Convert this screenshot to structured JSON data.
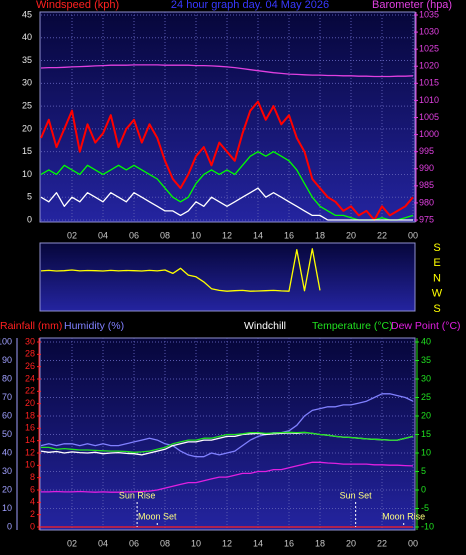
{
  "chart_data": [
    {
      "type": "line",
      "title": "24 hour graph day. 04 May 2026",
      "ylabel": "Windspeed (kph)",
      "y2label": "Barometer (hpa)",
      "x": [
        0,
        0.5,
        1,
        1.5,
        2,
        2.5,
        3,
        3.5,
        4,
        4.5,
        5,
        5.5,
        6,
        6.5,
        7,
        7.5,
        8,
        8.5,
        9,
        9.5,
        10,
        10.5,
        11,
        11.5,
        12,
        12.5,
        13,
        13.5,
        14,
        14.5,
        15,
        15.5,
        16,
        16.5,
        17,
        17.5,
        18,
        18.5,
        19,
        19.5,
        20,
        20.5,
        21,
        21.5,
        22,
        22.5,
        23,
        23.5,
        24
      ],
      "xlim": [
        0,
        24
      ],
      "xticks": [
        {
          "value": 2,
          "label": "02"
        },
        {
          "value": 4,
          "label": "04"
        },
        {
          "value": 6,
          "label": "06"
        },
        {
          "value": 8,
          "label": "08"
        },
        10,
        12,
        14,
        16,
        18,
        20,
        22,
        {
          "value": 24,
          "label": "00"
        }
      ],
      "ylim": [
        0,
        45
      ],
      "yticks": [
        0,
        5,
        10,
        15,
        20,
        25,
        30,
        35,
        40,
        45
      ],
      "y2lim": [
        975,
        1035
      ],
      "y2ticks": [
        975,
        980,
        985,
        990,
        995,
        1000,
        1005,
        1010,
        1015,
        1020,
        1025,
        1030,
        1035
      ],
      "grid": true,
      "series": [
        {
          "color": "#ff0000",
          "values": [
            18,
            22,
            16,
            20,
            24,
            15,
            21,
            17,
            19,
            23,
            16,
            20,
            22,
            17,
            21,
            18,
            13,
            9,
            7,
            10,
            14,
            16,
            12,
            17,
            15,
            13,
            19,
            24,
            26,
            22,
            25,
            21,
            23,
            18,
            15,
            9,
            7,
            5,
            4,
            2,
            3,
            1,
            2,
            0,
            3,
            1,
            2,
            3,
            5
          ]
        },
        {
          "color": "#00ff00",
          "values": [
            10,
            11,
            10,
            12,
            11,
            10,
            12,
            11,
            10,
            11,
            12,
            11,
            12,
            11,
            10,
            9,
            7,
            5,
            4,
            5,
            8,
            10,
            11,
            10,
            11,
            10,
            12,
            14,
            15,
            14,
            15,
            14,
            13,
            11,
            8,
            5,
            3,
            2,
            1,
            1,
            0.5,
            0,
            0,
            0,
            0.5,
            0,
            0,
            0.5,
            1
          ]
        },
        {
          "color": "#ffffff",
          "values": [
            5,
            4,
            6,
            3,
            5,
            4,
            6,
            5,
            4,
            6,
            5,
            4,
            6,
            5,
            4,
            3,
            2,
            2,
            1,
            2,
            4,
            3,
            5,
            4,
            3,
            4,
            5,
            6,
            7,
            5,
            6,
            5,
            4,
            3,
            2,
            1,
            1,
            0,
            0,
            0,
            0,
            0,
            0,
            0,
            0,
            0,
            0,
            0,
            0
          ]
        },
        {
          "color": "#e040e0",
          "axis": "y2",
          "values": [
            1019.5,
            1019.6,
            1019.6,
            1019.7,
            1019.8,
            1019.9,
            1020,
            1020.1,
            1020.2,
            1020.3,
            1020.3,
            1020.3,
            1020.4,
            1020.4,
            1020.4,
            1020.4,
            1020.3,
            1020.3,
            1020.3,
            1020.3,
            1020.2,
            1020.2,
            1020.1,
            1020,
            1019.8,
            1019.6,
            1019.3,
            1019,
            1018.7,
            1018.4,
            1018.1,
            1017.9,
            1017.7,
            1017.6,
            1017.5,
            1017.4,
            1017.4,
            1017.3,
            1017.3,
            1017.2,
            1017.2,
            1017.1,
            1017.1,
            1017,
            1017,
            1017,
            1017.1,
            1017.1,
            1017.2
          ]
        }
      ]
    },
    {
      "type": "line",
      "x": [
        0,
        0.5,
        1,
        1.5,
        2,
        2.5,
        3,
        3.5,
        4,
        4.5,
        5,
        5.5,
        6,
        6.5,
        7,
        7.5,
        8,
        8.5,
        9,
        9.5,
        10,
        10.5,
        11,
        11.5,
        12,
        12.5,
        13,
        13.5,
        14,
        14.5,
        15,
        15.5,
        16,
        16.5,
        17,
        17.5,
        18,
        18.5,
        19,
        19.5,
        20,
        20.5,
        21,
        21.5,
        22,
        22.5,
        23,
        23.5,
        24
      ],
      "xlim": [
        0,
        24
      ],
      "ylim": [
        -180,
        180
      ],
      "yticks": [
        {
          "value": 180,
          "label": "S"
        },
        {
          "value": 90,
          "label": "E"
        },
        {
          "value": 0,
          "label": "N"
        },
        {
          "value": -90,
          "label": "W"
        },
        {
          "value": -180,
          "label": "S"
        }
      ],
      "series": [
        {
          "color": "#ffff00",
          "values": [
            45,
            48,
            44,
            46,
            50,
            45,
            47,
            46,
            44,
            48,
            45,
            47,
            46,
            44,
            48,
            45,
            50,
            30,
            60,
            20,
            10,
            -20,
            -60,
            -70,
            -75,
            -72,
            -70,
            -75,
            -74,
            -72,
            -70,
            -73,
            -75,
            170,
            -72,
            175,
            -70,
            null,
            null,
            null,
            null,
            null,
            null,
            null,
            null,
            null,
            null,
            null,
            null
          ]
        }
      ]
    },
    {
      "type": "line",
      "x": [
        0,
        0.5,
        1,
        1.5,
        2,
        2.5,
        3,
        3.5,
        4,
        4.5,
        5,
        5.5,
        6,
        6.5,
        7,
        7.5,
        8,
        8.5,
        9,
        9.5,
        10,
        10.5,
        11,
        11.5,
        12,
        12.5,
        13,
        13.5,
        14,
        14.5,
        15,
        15.5,
        16,
        16.5,
        17,
        17.5,
        18,
        18.5,
        19,
        19.5,
        20,
        20.5,
        21,
        21.5,
        22,
        22.5,
        23,
        23.5,
        24
      ],
      "xlim": [
        0,
        24
      ],
      "xticks": [
        {
          "value": 2,
          "label": "02"
        },
        {
          "value": 4,
          "label": "04"
        },
        {
          "value": 6,
          "label": "06"
        },
        {
          "value": 8,
          "label": "08"
        },
        10,
        12,
        14,
        16,
        18,
        20,
        22,
        {
          "value": 24,
          "label": "00"
        }
      ],
      "ylim": [
        0,
        100
      ],
      "yticks": [
        0,
        10,
        20,
        30,
        40,
        50,
        60,
        70,
        80,
        90,
        100
      ],
      "y3lim": [
        0,
        30
      ],
      "y3ticks": [
        0,
        2,
        4,
        6,
        8,
        10,
        12,
        14,
        16,
        18,
        20,
        22,
        24,
        26,
        28,
        30
      ],
      "y2lim": [
        -10,
        40
      ],
      "y2ticks": [
        -10,
        -5,
        0,
        5,
        10,
        15,
        20,
        25,
        30,
        35,
        40
      ],
      "grid": true,
      "series": [
        {
          "name": "Rainfall (mm)",
          "color": "#ff2020",
          "axis": "y3",
          "values": [
            0,
            0,
            0,
            0,
            0,
            0,
            0,
            0,
            0,
            0,
            0,
            0,
            0,
            0,
            0,
            0,
            0,
            0,
            0,
            0,
            0,
            0,
            0,
            0,
            0,
            0,
            0,
            0,
            0,
            0,
            0,
            0,
            0,
            0,
            0,
            0,
            0,
            0,
            0,
            0,
            0,
            0,
            0,
            0,
            0,
            0,
            0,
            0,
            0
          ]
        },
        {
          "name": "Humidity (%)",
          "color": "#8080ff",
          "values": [
            44,
            45,
            44,
            45,
            45,
            44,
            45,
            44,
            45,
            44,
            44,
            45,
            46,
            47,
            48,
            47,
            45,
            44,
            41,
            39,
            38,
            38,
            40,
            39,
            40,
            41,
            44,
            47,
            49,
            50,
            51,
            51,
            52,
            55,
            60,
            63,
            64,
            65,
            65,
            66,
            66,
            67,
            68,
            70,
            72,
            72,
            71,
            70,
            68
          ]
        },
        {
          "name": "Windchill",
          "color": "#ffffff",
          "axis": "y2",
          "values": [
            10.5,
            10.2,
            10.4,
            10,
            10.3,
            10.1,
            10,
            10.2,
            9.8,
            10,
            10.1,
            9.9,
            9.8,
            9.5,
            10,
            10.5,
            11,
            12,
            12.5,
            13,
            13,
            13.5,
            13.5,
            14,
            14.5,
            14.5,
            15,
            15.2,
            15.3,
            15,
            15.2,
            15.3,
            15.4,
            15.3,
            15.5,
            15.3,
            15,
            14.8,
            14.5,
            14.3,
            14.2,
            14,
            13.8,
            13.7,
            13.6,
            13.5,
            13.5,
            14,
            14.5
          ]
        },
        {
          "name": "Temperature (°C)",
          "color": "#20e020",
          "axis": "y2",
          "values": [
            11.5,
            11.5,
            11,
            11.2,
            11,
            10.8,
            10.8,
            10.7,
            10.6,
            10.5,
            10.5,
            10.4,
            10.2,
            10.3,
            10.5,
            11,
            11.5,
            12.5,
            13,
            13.5,
            13.5,
            14,
            14,
            14.5,
            15,
            15,
            15.2,
            15.5,
            15.5,
            15.3,
            15.4,
            15.5,
            15.6,
            15.5,
            15.6,
            15.3,
            15,
            14.8,
            14.5,
            14.3,
            14.2,
            14,
            13.8,
            13.7,
            13.6,
            13.5,
            13.5,
            14,
            14.5
          ]
        },
        {
          "name": "Dew Point (°C)",
          "color": "#e020e0",
          "axis": "y2",
          "values": [
            -0.5,
            -0.5,
            -0.4,
            -0.5,
            -0.5,
            -0.4,
            -0.5,
            -0.6,
            -0.5,
            -0.6,
            -0.6,
            -0.5,
            -0.5,
            -0.4,
            -0.3,
            0,
            0.5,
            1,
            1.5,
            2,
            2,
            2.5,
            3,
            3.5,
            3.5,
            4,
            4.5,
            4.5,
            5,
            5,
            5.5,
            5.5,
            6,
            6.5,
            7,
            7.5,
            7.5,
            7.3,
            7.2,
            7,
            7,
            7,
            7,
            6.8,
            6.8,
            6.7,
            6.7,
            6.6,
            6.5
          ]
        }
      ],
      "annotations": [
        {
          "text": "Sun Rise",
          "x": 6.2
        },
        {
          "text": "Moon Set",
          "x": 7.5
        },
        {
          "text": "Sun Set",
          "x": 20.3
        },
        {
          "text": "Moon Rise",
          "x": 23.4
        }
      ]
    }
  ]
}
